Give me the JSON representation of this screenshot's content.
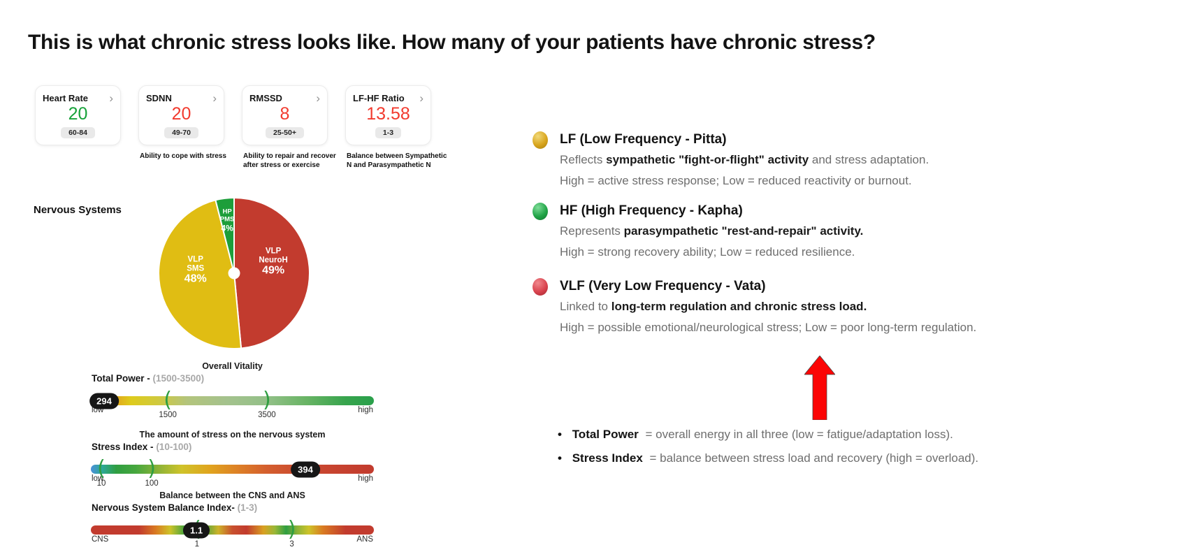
{
  "title": "This is what chronic stress looks like. How many of your patients have chronic stress?",
  "metric_cards": [
    {
      "label": "Heart Rate",
      "chevron": "›",
      "value": "20",
      "value_color": "#17a23a",
      "range": "60-84",
      "description": ""
    },
    {
      "label": "SDNN",
      "chevron": "›",
      "value": "20",
      "value_color": "#f23a2e",
      "range": "49-70",
      "description": "Ability to cope with stress"
    },
    {
      "label": "RMSSD",
      "chevron": "›",
      "value": "8",
      "value_color": "#f23a2e",
      "range": "25-50+",
      "description": "Ability to repair and recover after stress or exercise"
    },
    {
      "label": "LF-HF Ratio",
      "chevron": "›",
      "value": "13.58",
      "value_color": "#f23a2e",
      "range": "1-3",
      "description": "Balance between Sympathetic N and Parasympathetic N"
    }
  ],
  "chart_data": [
    {
      "type": "pie",
      "title": "Nervous Systems",
      "start": "top",
      "direction": "clockwise",
      "slice_border": "#ffffff",
      "hole_color": "#ffffff",
      "slices": [
        {
          "label_lines": [
            "VLP",
            "NeuroH"
          ],
          "pct_label": "49%",
          "value": 49,
          "color": "#c23b2e",
          "label_r": 0.52,
          "small": false
        },
        {
          "label_lines": [
            "VLP",
            "SMS"
          ],
          "pct_label": "48%",
          "value": 48,
          "color": "#e0bd13",
          "label_r": 0.52,
          "small": false
        },
        {
          "label_lines": [
            "HP",
            "PMS"
          ],
          "pct_label": "4%",
          "value": 4,
          "color": "#1d9e3a",
          "label_r": 0.74,
          "small": true
        }
      ]
    },
    {
      "type": "gauge",
      "caption": "Overall Vitality",
      "label": "Total Power -",
      "range_label": "(1500-3500)",
      "value": "294",
      "value_pos_pct": 4.7,
      "axis_min_label": "low",
      "axis_max_label": "high",
      "markers": [
        {
          "glyph": "(",
          "tick": "1500",
          "pos_pct": 27.2
        },
        {
          "glyph": ")",
          "tick": "3500",
          "pos_pct": 62.2
        }
      ],
      "gradient": "linear-gradient(90deg,#e2452a 0%,#e58c1d 5%,#decb1b 14%,#cfc93f 24%,#b3c47c 34%,#a4c28d 48%,#93c088 62%,#69b465 76%,#37a44d 90%,#2aa04b 100%)"
    },
    {
      "type": "gauge",
      "caption": "The amount of stress on the nervous system",
      "label": "Stress Index -",
      "range_label": "(10-100)",
      "value": "394",
      "value_pos_pct": 75.8,
      "axis_min_label": "low",
      "axis_max_label": "high",
      "markers": [
        {
          "glyph": "(",
          "tick": "10",
          "pos_pct": 3.7
        },
        {
          "glyph": ")",
          "tick": "100",
          "pos_pct": 21.5
        }
      ],
      "gradient": "linear-gradient(90deg,#4a90d9 0%,#2da898 4%,#2f9e41 9%,#47a73e 16%,#8db338 24%,#cfc32a 32%,#e0a41e 42%,#dd8026 52%,#d45f2e 62%,#cb4a30 74%,#c23b2e 100%)"
    },
    {
      "type": "gauge",
      "caption": "Balance between the CNS and ANS",
      "label": "Nervous System Balance Index-",
      "range_label": "(1-3)",
      "value": "1.1",
      "value_pos_pct": 37.3,
      "axis_min_label": "CNS",
      "axis_max_label": "ANS",
      "markers": [
        {
          "glyph": "(",
          "tick": "1",
          "pos_pct": 37.5
        },
        {
          "glyph": ")",
          "tick": "3",
          "pos_pct": 71.0
        }
      ],
      "gradient": "linear-gradient(90deg,#c23b2e 0%,#c23b2e 17%,#d97b22 23%,#cdc32a 28%,#2f9e41 34%,#2f9e41 39%,#cdb32a 45%,#c8502e 50%,#c23b2e 55%,#d9a022 61%,#9ab737 65%,#2f9e41 69%,#8db338 73%,#cdc32a 77%,#d97b22 82%,#c23b2e 90%,#c23b2e 100%)"
    }
  ],
  "legend": [
    {
      "ball_colors": [
        "#f1d979",
        "#d8a51d",
        "#a87e0b"
      ],
      "title": "LF (Low Frequency - Pitta)",
      "line1": [
        {
          "t": "Reflects ",
          "b": false
        },
        {
          "t": "sympathetic \"fight-or-flight\" activity",
          "b": true
        },
        {
          "t": " and stress adaptation.",
          "b": false
        }
      ],
      "line2": [
        {
          "t": "High = active stress response; Low = reduced reactivity or burnout.",
          "b": false
        }
      ]
    },
    {
      "ball_colors": [
        "#7fdd99",
        "#21a447",
        "#11762f"
      ],
      "title": "HF (High Frequency - Kapha)",
      "line1": [
        {
          "t": "Represents ",
          "b": false
        },
        {
          "t": "parasympathetic \"rest-and-repair\" activity.",
          "b": true
        }
      ],
      "line2": [
        {
          "t": "High = strong recovery ability; Low = reduced resilience.",
          "b": false
        }
      ]
    },
    {
      "ball_colors": [
        "#f0888d",
        "#d9434e",
        "#a2262f"
      ],
      "title": "VLF (Very Low Frequency - Vata)",
      "line1": [
        {
          "t": "Linked to ",
          "b": false
        },
        {
          "t": "long-term regulation and chronic stress load.",
          "b": true
        }
      ],
      "line2": [
        {
          "t": "High = possible emotional/neurological stress; Low = poor long-term regulation.",
          "b": false
        }
      ]
    }
  ],
  "notes": [
    {
      "term": "Total Power",
      "rest": "= overall energy in all three (low = fatigue/adaptation loss)."
    },
    {
      "term": "Stress Index",
      "rest": "= balance between stress load and recovery (high = overload)."
    }
  ],
  "arrow": {
    "direction": "up",
    "color": "#fb0505"
  }
}
